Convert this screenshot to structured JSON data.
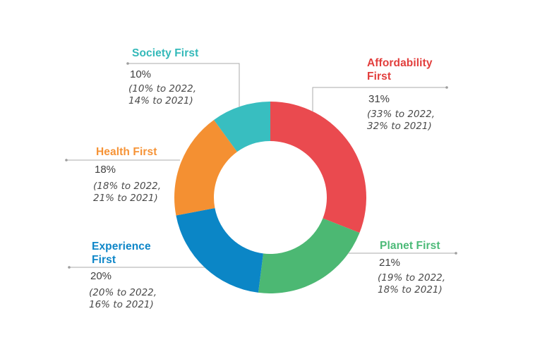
{
  "chart_data": {
    "type": "pie",
    "subtype": "donut",
    "title": "",
    "legend_position": "none-direct-labels-with-leader-lines",
    "start_angle": "top",
    "direction": "clockwise",
    "total": 100,
    "leader_line_color": "#ababab",
    "background_color": "#ffffff",
    "series": [
      {
        "label": "Affordability First",
        "value": 31,
        "display_pct": "31%",
        "note_line1": "(33% to 2022,",
        "note_line2": "32% to 2021)",
        "color": "#EA4A4F",
        "label_color": "#E23E3C"
      },
      {
        "label": "Planet First",
        "value": 21,
        "display_pct": "21%",
        "note_line1": "(19% to 2022,",
        "note_line2": "18% to 2021)",
        "color": "#4CB873",
        "label_color": "#4CBA78"
      },
      {
        "label": "Experience First",
        "value": 20,
        "display_pct": "20%",
        "note_line1": "(20% to 2022,",
        "note_line2": "16% to 2021)",
        "color": "#0B86C6",
        "label_color": "#0E86C8"
      },
      {
        "label": "Health First",
        "value": 18,
        "display_pct": "18%",
        "note_line1": "(18% to 2022,",
        "note_line2": "21% to 2021)",
        "color": "#F49032",
        "label_color": "#F69336"
      },
      {
        "label": "Society First",
        "value": 10,
        "display_pct": "10%",
        "note_line1": "(10% to 2022,",
        "note_line2": "14% to 2021)",
        "color": "#38BEC0",
        "label_color": "#33B9B9"
      }
    ]
  }
}
